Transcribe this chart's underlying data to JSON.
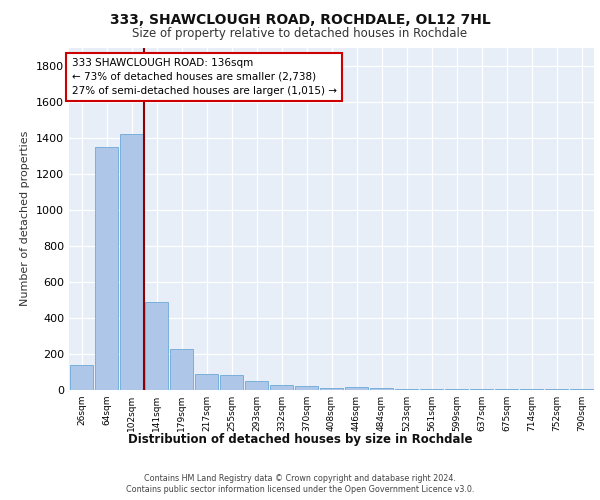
{
  "title1": "333, SHAWCLOUGH ROAD, ROCHDALE, OL12 7HL",
  "title2": "Size of property relative to detached houses in Rochdale",
  "xlabel": "Distribution of detached houses by size in Rochdale",
  "ylabel": "Number of detached properties",
  "bin_labels": [
    "26sqm",
    "64sqm",
    "102sqm",
    "141sqm",
    "179sqm",
    "217sqm",
    "255sqm",
    "293sqm",
    "332sqm",
    "370sqm",
    "408sqm",
    "446sqm",
    "484sqm",
    "523sqm",
    "561sqm",
    "599sqm",
    "637sqm",
    "675sqm",
    "714sqm",
    "752sqm",
    "790sqm"
  ],
  "bar_heights": [
    140,
    1350,
    1420,
    490,
    230,
    90,
    85,
    50,
    30,
    20,
    10,
    15,
    10,
    5,
    5,
    5,
    5,
    5,
    5,
    5,
    5
  ],
  "bar_color": "#aec6e8",
  "bar_edge_color": "#5a9fd4",
  "background_color": "#e8eef8",
  "grid_color": "#ffffff",
  "vline_pos": 2.5,
  "vline_color": "#8b0000",
  "annotation_text": "333 SHAWCLOUGH ROAD: 136sqm\n← 73% of detached houses are smaller (2,738)\n27% of semi-detached houses are larger (1,015) →",
  "annotation_box_color": "#ffffff",
  "annotation_box_edge_color": "#cc0000",
  "ylim": [
    0,
    1900
  ],
  "yticks": [
    0,
    200,
    400,
    600,
    800,
    1000,
    1200,
    1400,
    1600,
    1800
  ],
  "footer_line1": "Contains HM Land Registry data © Crown copyright and database right 2024.",
  "footer_line2": "Contains public sector information licensed under the Open Government Licence v3.0."
}
